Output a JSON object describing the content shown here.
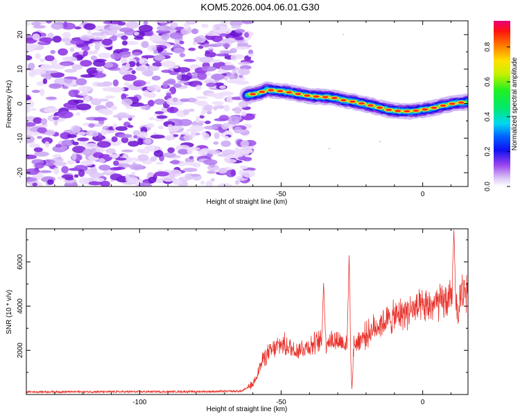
{
  "title": "KOM5.2026.004.06.01.G30",
  "chart_data": [
    {
      "type": "heatmap",
      "name": "spectrogram",
      "xlabel": "Height of straight line (km)",
      "ylabel": "Frequency (Hz)",
      "xlim": [
        -140,
        16
      ],
      "ylim": [
        -24,
        24
      ],
      "x_ticks": [
        -100,
        -50,
        0
      ],
      "y_ticks": [
        -20,
        -10,
        0,
        10,
        20
      ],
      "noise_region_x": [
        -140,
        -62
      ],
      "signal_track": {
        "x": [
          -62,
          -58,
          -55,
          -52,
          -48,
          -44,
          -40,
          -36,
          -32,
          -28,
          -24,
          -20,
          -16,
          -12,
          -8,
          -4,
          0,
          4,
          8,
          12,
          16
        ],
        "freq": [
          2.5,
          3.0,
          4.0,
          3.8,
          3.4,
          2.8,
          2.2,
          2.0,
          1.8,
          1.0,
          0.5,
          -0.2,
          -1.0,
          -1.8,
          -2.2,
          -2.2,
          -1.8,
          -1.2,
          -0.4,
          0.2,
          0.5
        ]
      },
      "colorbar": {
        "label": "Normalized spectral amplitude",
        "range": [
          0.0,
          0.95
        ],
        "ticks": [
          "0.0",
          "0.2",
          "0.4",
          "0.6",
          "0.8"
        ],
        "tick_values": [
          0.0,
          0.2,
          0.4,
          0.6,
          0.8
        ]
      }
    },
    {
      "type": "line",
      "name": "snr",
      "xlabel": "Height of straight line (km)",
      "ylabel": "SNR (10 * v/v)",
      "xlim": [
        -140,
        16
      ],
      "ylim": [
        0,
        7500
      ],
      "x_ticks": [
        -100,
        -50,
        0
      ],
      "y_ticks": [
        2000,
        4000,
        6000
      ],
      "color": "#e8332c",
      "series_trend": {
        "x": [
          -140,
          -80,
          -64,
          -60,
          -56,
          -50,
          -45,
          -40,
          -35,
          -30,
          -25,
          -20,
          -15,
          -10,
          -5,
          0,
          5,
          10,
          16
        ],
        "y": [
          120,
          130,
          150,
          450,
          1700,
          2300,
          2000,
          2200,
          2450,
          2450,
          2200,
          2700,
          3200,
          3500,
          3800,
          3900,
          4100,
          4300,
          4800
        ]
      },
      "peaks": [
        {
          "x": -35,
          "y": 5050
        },
        {
          "x": -26,
          "y": 6300
        },
        {
          "x": -25,
          "y": 250
        },
        {
          "x": 11,
          "y": 7450
        },
        {
          "x": 12.5,
          "y": 3200
        }
      ]
    }
  ]
}
